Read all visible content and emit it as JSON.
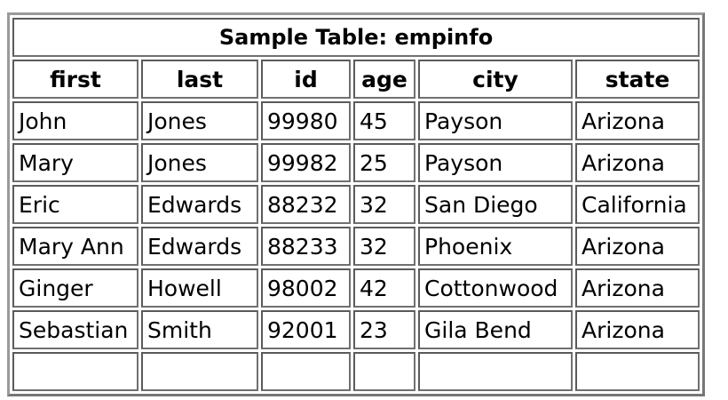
{
  "table": {
    "caption": "Sample Table: empinfo",
    "headers": [
      "first",
      "last",
      "id",
      "age",
      "city",
      "state"
    ],
    "rows": [
      [
        "John",
        "Jones",
        "99980",
        "45",
        "Payson",
        "Arizona"
      ],
      [
        "Mary",
        "Jones",
        "99982",
        "25",
        "Payson",
        "Arizona"
      ],
      [
        "Eric",
        "Edwards",
        "88232",
        "32",
        "San Diego",
        "California"
      ],
      [
        "Mary Ann",
        "Edwards",
        "88233",
        "32",
        "Phoenix",
        "Arizona"
      ],
      [
        "Ginger",
        "Howell",
        "98002",
        "42",
        "Cottonwood",
        "Arizona"
      ],
      [
        "Sebastian",
        "Smith",
        "92001",
        "23",
        "Gila Bend",
        "Arizona"
      ]
    ]
  },
  "colors": {
    "border_dark": "#5a5a5a",
    "border_light": "#9a9a9a",
    "background": "#ffffff",
    "text": "#000000"
  }
}
